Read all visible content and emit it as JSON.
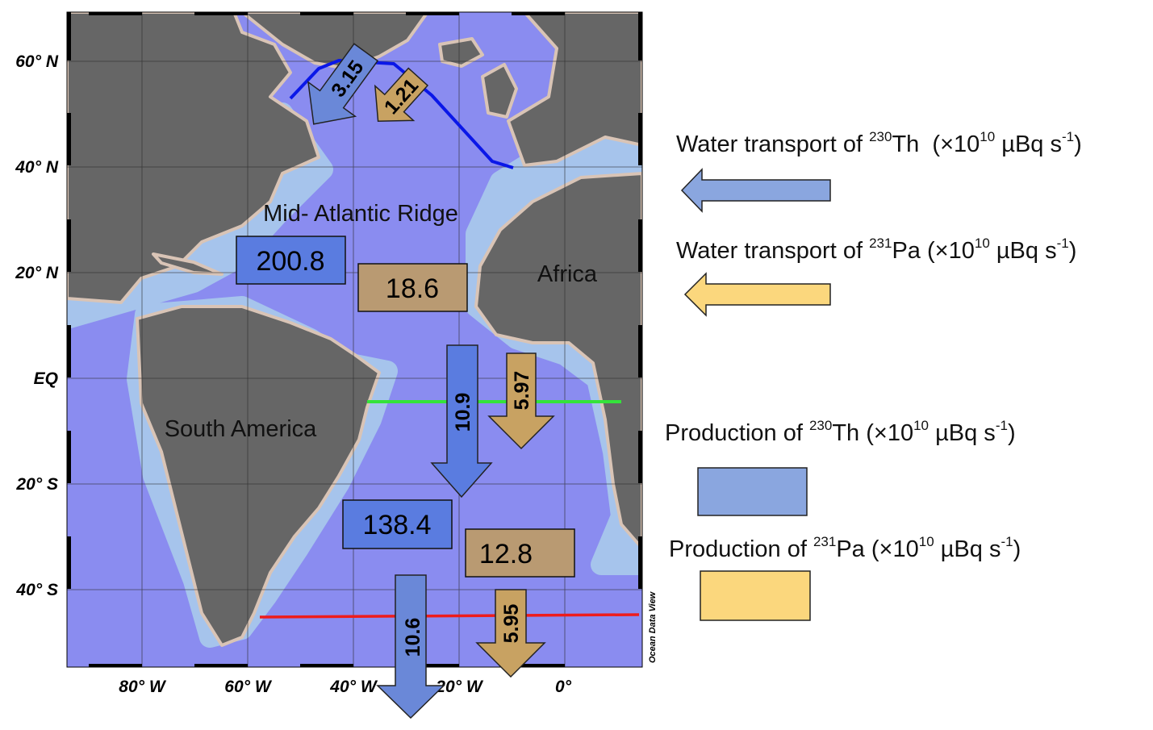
{
  "colors": {
    "th_blue": "#8aa6df",
    "pa_yellow": "#fbd77d",
    "th_box_on_map": "#5a7ce0",
    "pa_box_on_map": "#b99a72",
    "ocean": "#8a8cf0",
    "land": "#666666",
    "section_north": "#0a17e8",
    "section_equator": "#34e33a",
    "section_south": "#ee1c1c"
  },
  "map": {
    "lat_labels": [
      "60° N",
      "40° N",
      "20° N",
      "EQ",
      "20° S",
      "40° S"
    ],
    "lon_labels": [
      "80° W",
      "60° W",
      "40° W",
      "20° W",
      "0°"
    ],
    "credit": "Ocean Data View",
    "places": {
      "ridge": "Mid- Atlantic Ridge",
      "africa": "Africa",
      "south_america": "South America"
    },
    "production_boxes": [
      {
        "id": "north-th",
        "value": "200.8",
        "kind": "230Th"
      },
      {
        "id": "north-pa",
        "value": "18.6",
        "kind": "231Pa"
      },
      {
        "id": "south-th",
        "value": "138.4",
        "kind": "230Th"
      },
      {
        "id": "south-pa",
        "value": "12.8",
        "kind": "231Pa"
      }
    ],
    "transport_arrows": [
      {
        "id": "north-th",
        "value": "3.15",
        "kind": "230Th"
      },
      {
        "id": "north-pa",
        "value": "1.21",
        "kind": "231Pa"
      },
      {
        "id": "eq-th",
        "value": "10.9",
        "kind": "230Th"
      },
      {
        "id": "eq-pa",
        "value": "5.97",
        "kind": "231Pa"
      },
      {
        "id": "south-th",
        "value": "10.6",
        "kind": "230Th"
      },
      {
        "id": "south-pa",
        "value": "5.95",
        "kind": "231Pa"
      }
    ]
  },
  "legend": {
    "water_th": {
      "pre": "Water transport of ",
      "iso": "230",
      "el": "Th",
      "mid": "  (×10",
      "exp": "10",
      "unit": " µBq s",
      "unit_exp": "-1",
      "close": ")"
    },
    "water_pa": {
      "pre": "Water transport of ",
      "iso": "231",
      "el": "Pa",
      "mid": " (×10",
      "exp": "10",
      "unit": " µBq s",
      "unit_exp": "-1",
      "close": ")"
    },
    "prod_th": {
      "pre": "Production of ",
      "iso": "230",
      "el": "Th",
      "mid": " (×10",
      "exp": "10",
      "unit": " µBq s",
      "unit_exp": "-1",
      "close": ")"
    },
    "prod_pa": {
      "pre": "Production of ",
      "iso": "231",
      "el": "Pa",
      "mid": " (×10",
      "exp": "10",
      "unit": " µBq s",
      "unit_exp": "-1",
      "close": ")"
    }
  }
}
